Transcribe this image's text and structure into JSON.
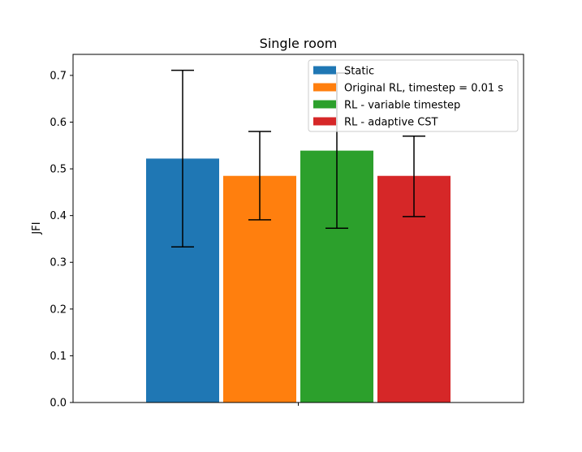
{
  "chart_data": {
    "type": "bar",
    "title": "Single room",
    "xlabel": "",
    "ylabel": "JFI",
    "ylim": [
      0,
      0.745
    ],
    "yticks": [
      0.0,
      0.1,
      0.2,
      0.3,
      0.4,
      0.5,
      0.6,
      0.7
    ],
    "ytick_labels": [
      "0.0",
      "0.1",
      "0.2",
      "0.3",
      "0.4",
      "0.5",
      "0.6",
      "0.7"
    ],
    "grid": false,
    "legend_position": "top-right",
    "series": [
      {
        "name": "Static",
        "value": 0.522,
        "err_low": 0.333,
        "err_high": 0.711,
        "color": "#1f77b4"
      },
      {
        "name": "Original RL, timestep = 0.01 s",
        "value": 0.485,
        "err_low": 0.391,
        "err_high": 0.58,
        "color": "#ff7f0e"
      },
      {
        "name": "RL - variable timestep",
        "value": 0.539,
        "err_low": 0.373,
        "err_high": 0.705,
        "color": "#2ca02c"
      },
      {
        "name": "RL - adaptive CST",
        "value": 0.485,
        "err_low": 0.398,
        "err_high": 0.57,
        "color": "#d62728"
      }
    ]
  }
}
